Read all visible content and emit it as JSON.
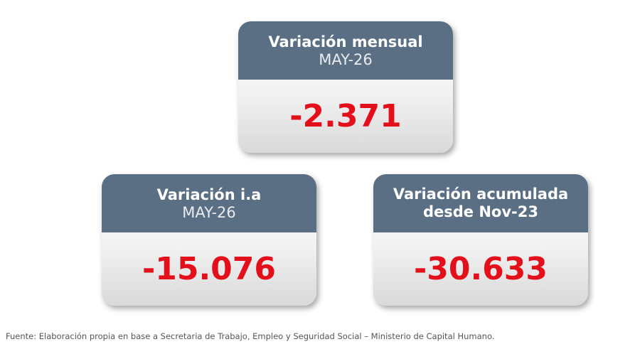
{
  "cards": [
    {
      "title": "Variación mensual",
      "subtitle": "MAY-26",
      "value": "-2.371"
    },
    {
      "title": "Variación i.a",
      "subtitle": "MAY-26",
      "value": "-15.076"
    },
    {
      "title": "Variación acumulada desde Nov-23",
      "value": "-30.633"
    }
  ],
  "footnote": "Fuente: Elaboración propia en base a Secretaria de Trabajo, Empleo y Seguridad Social – Ministerio de Capital Humano."
}
